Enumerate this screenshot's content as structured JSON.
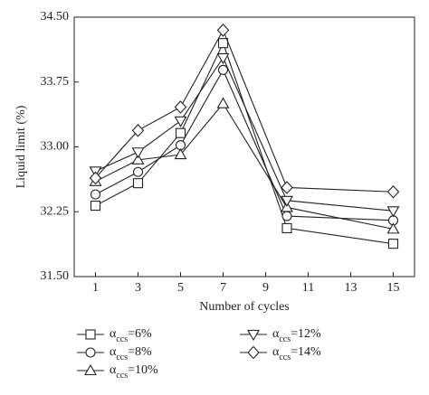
{
  "chart_data": {
    "type": "line",
    "x_label": "Number of cycles",
    "y_label": "Liquid limit (%)",
    "xlim": [
      0,
      16
    ],
    "xticks": [
      1,
      3,
      5,
      7,
      9,
      11,
      13,
      15
    ],
    "ylim": [
      31.5,
      34.5
    ],
    "yticks": [
      {
        "value": 31.5,
        "label": "31.50"
      },
      32.25,
      {
        "value": 33,
        "label": "33.00"
      },
      33.75,
      {
        "value": 34.5,
        "label": "34.50"
      }
    ],
    "x": [
      1,
      3,
      5,
      7,
      10,
      15
    ],
    "series": [
      {
        "name": "αccs=6%",
        "marker": "square",
        "color": "#222222",
        "values": [
          32.32,
          32.58,
          33.16,
          34.2,
          32.06,
          31.88
        ]
      },
      {
        "name": "αccs=8%",
        "marker": "circle",
        "color": "#222222",
        "values": [
          32.45,
          32.71,
          33.02,
          33.89,
          32.2,
          32.15
        ]
      },
      {
        "name": "αccs=10%",
        "marker": "triangle-up",
        "color": "#222222",
        "values": [
          32.6,
          32.85,
          32.91,
          33.5,
          32.3,
          32.05
        ]
      },
      {
        "name": "αccs=12%",
        "marker": "triangle-down",
        "color": "#222222",
        "values": [
          32.72,
          32.94,
          33.3,
          34.03,
          32.38,
          32.26
        ]
      },
      {
        "name": "αccs=14%",
        "marker": "diamond",
        "color": "#222222",
        "values": [
          32.64,
          33.19,
          33.46,
          34.35,
          32.53,
          32.48
        ]
      }
    ]
  }
}
